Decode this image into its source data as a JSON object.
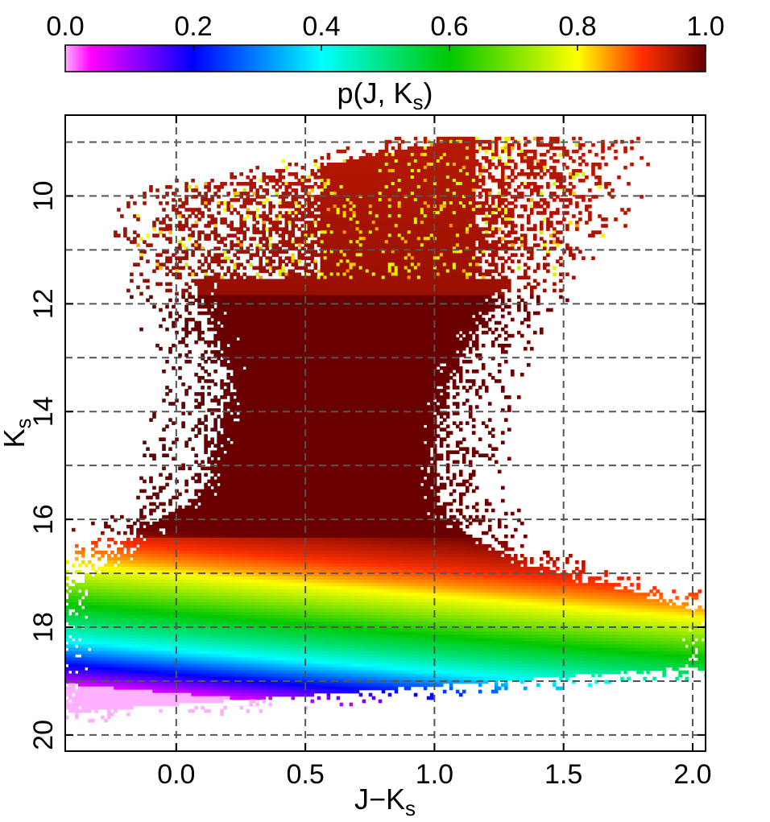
{
  "chart_data": {
    "type": "heatmap",
    "xlabel": "J−K",
    "xlabel_sub": "s",
    "ylabel": "K",
    "ylabel_sub": "s",
    "xlim": [
      -0.43,
      2.05
    ],
    "ylim": [
      20.3,
      8.5
    ],
    "y_inverted": true,
    "x_ticks": [
      0.0,
      0.5,
      1.0,
      1.5,
      2.0
    ],
    "x_tick_labels": [
      "0.0",
      "0.5",
      "1.0",
      "1.5",
      "2.0"
    ],
    "y_ticks": [
      10,
      12,
      14,
      16,
      18,
      20
    ],
    "y_tick_labels": [
      "10",
      "12",
      "14",
      "16",
      "18",
      "20"
    ],
    "grid": true,
    "colorbar": {
      "label": "p(J, K",
      "label_sub": "s",
      "label_close": ")",
      "min": 0.0,
      "max": 1.0,
      "ticks": [
        0.0,
        0.2,
        0.4,
        0.6,
        0.8,
        1.0
      ],
      "tick_labels": [
        "0.0",
        "0.2",
        "0.4",
        "0.6",
        "0.8",
        "1.0"
      ],
      "position": "top",
      "colormap": "rainbow (magenta → blue → cyan → green → yellow → red → dark red)"
    },
    "description_data": {
      "completeness_vs_Ks": [
        {
          "Ks": 9.0,
          "p": 0.95
        },
        {
          "Ks": 16.0,
          "p": 1.0
        },
        {
          "Ks": 16.6,
          "p": 0.92
        },
        {
          "Ks": 17.0,
          "p": 0.85
        },
        {
          "Ks": 17.5,
          "p": 0.72
        },
        {
          "Ks": 18.0,
          "p": 0.58
        },
        {
          "Ks": 18.3,
          "p": 0.5
        },
        {
          "Ks": 18.6,
          "p": 0.4
        },
        {
          "Ks": 19.0,
          "p": 0.22
        },
        {
          "Ks": 19.4,
          "p": 0.06
        }
      ],
      "faint_limit_slope_per_mag_color": 0.4
    }
  }
}
